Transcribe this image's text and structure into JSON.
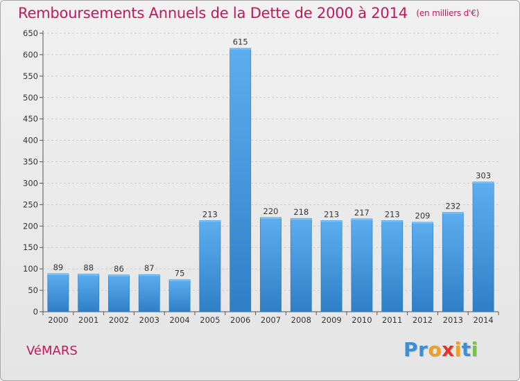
{
  "title": {
    "main": "Remboursements Annuels de la Dette de 2000 à 2014",
    "unit": "(en milliers d'€)"
  },
  "city": "VéMARS",
  "logo": {
    "text": "Proxiti",
    "letters": [
      {
        "ch": "P",
        "color": "#3a8fd8"
      },
      {
        "ch": "r",
        "color": "#3a8fd8"
      },
      {
        "ch": "o",
        "color": "#f0a020"
      },
      {
        "ch": "x",
        "color": "#e8332a"
      },
      {
        "ch": "i",
        "color": "#f0a020"
      },
      {
        "ch": "t",
        "color": "#3a8fd8"
      },
      {
        "ch": "i",
        "color": "#7cc242"
      }
    ]
  },
  "chart_data": {
    "type": "bar",
    "title": "Remboursements Annuels de la Dette de 2000 à 2014",
    "subtitle": "(en milliers d'€)",
    "xlabel": "",
    "ylabel": "",
    "categories": [
      "2000",
      "2001",
      "2002",
      "2003",
      "2004",
      "2005",
      "2006",
      "2007",
      "2008",
      "2009",
      "2010",
      "2011",
      "2012",
      "2013",
      "2014"
    ],
    "values": [
      89,
      88,
      86,
      87,
      75,
      213,
      615,
      220,
      218,
      213,
      217,
      213,
      209,
      232,
      303
    ],
    "ylim": [
      0,
      650
    ],
    "yticks": [
      0,
      50,
      100,
      150,
      200,
      250,
      300,
      350,
      400,
      450,
      500,
      550,
      600,
      650
    ],
    "grid": true,
    "legend": "none",
    "bar_color": "#3d92d8",
    "bar_color_light": "#5daef0"
  }
}
